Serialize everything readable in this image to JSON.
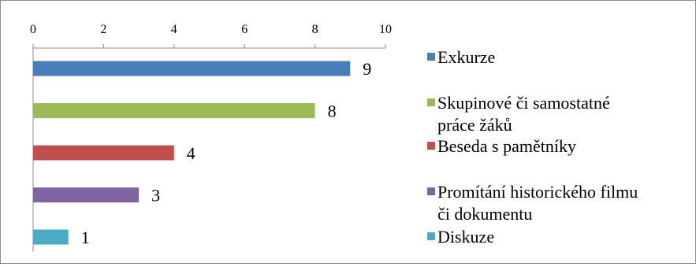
{
  "chart_data": {
    "type": "bar",
    "orientation": "horizontal",
    "categories": [
      "Exkurze",
      "Skupinové či samostatné práce žáků",
      "Beseda s pamětníky",
      "Promítání historického filmu či dokumentu",
      "Diskuze"
    ],
    "values": [
      9,
      8,
      4,
      3,
      1
    ],
    "colors": [
      "#4a7ebb",
      "#9bbb59",
      "#c0504d",
      "#8064a2",
      "#4bacc6"
    ],
    "xlim": [
      0,
      10
    ],
    "x_ticks": [
      0,
      2,
      4,
      6,
      8,
      10
    ],
    "x_axis_position": "top",
    "grid": false,
    "legend": {
      "placement": "right",
      "entries": [
        [
          "Exkurze"
        ],
        [
          "Skupinové či samostatné",
          "práce žáků"
        ],
        [
          "Beseda s pamětníky"
        ],
        [
          "Promítání historického filmu",
          "či dokumentu"
        ],
        [
          "Diskuze"
        ]
      ]
    }
  }
}
